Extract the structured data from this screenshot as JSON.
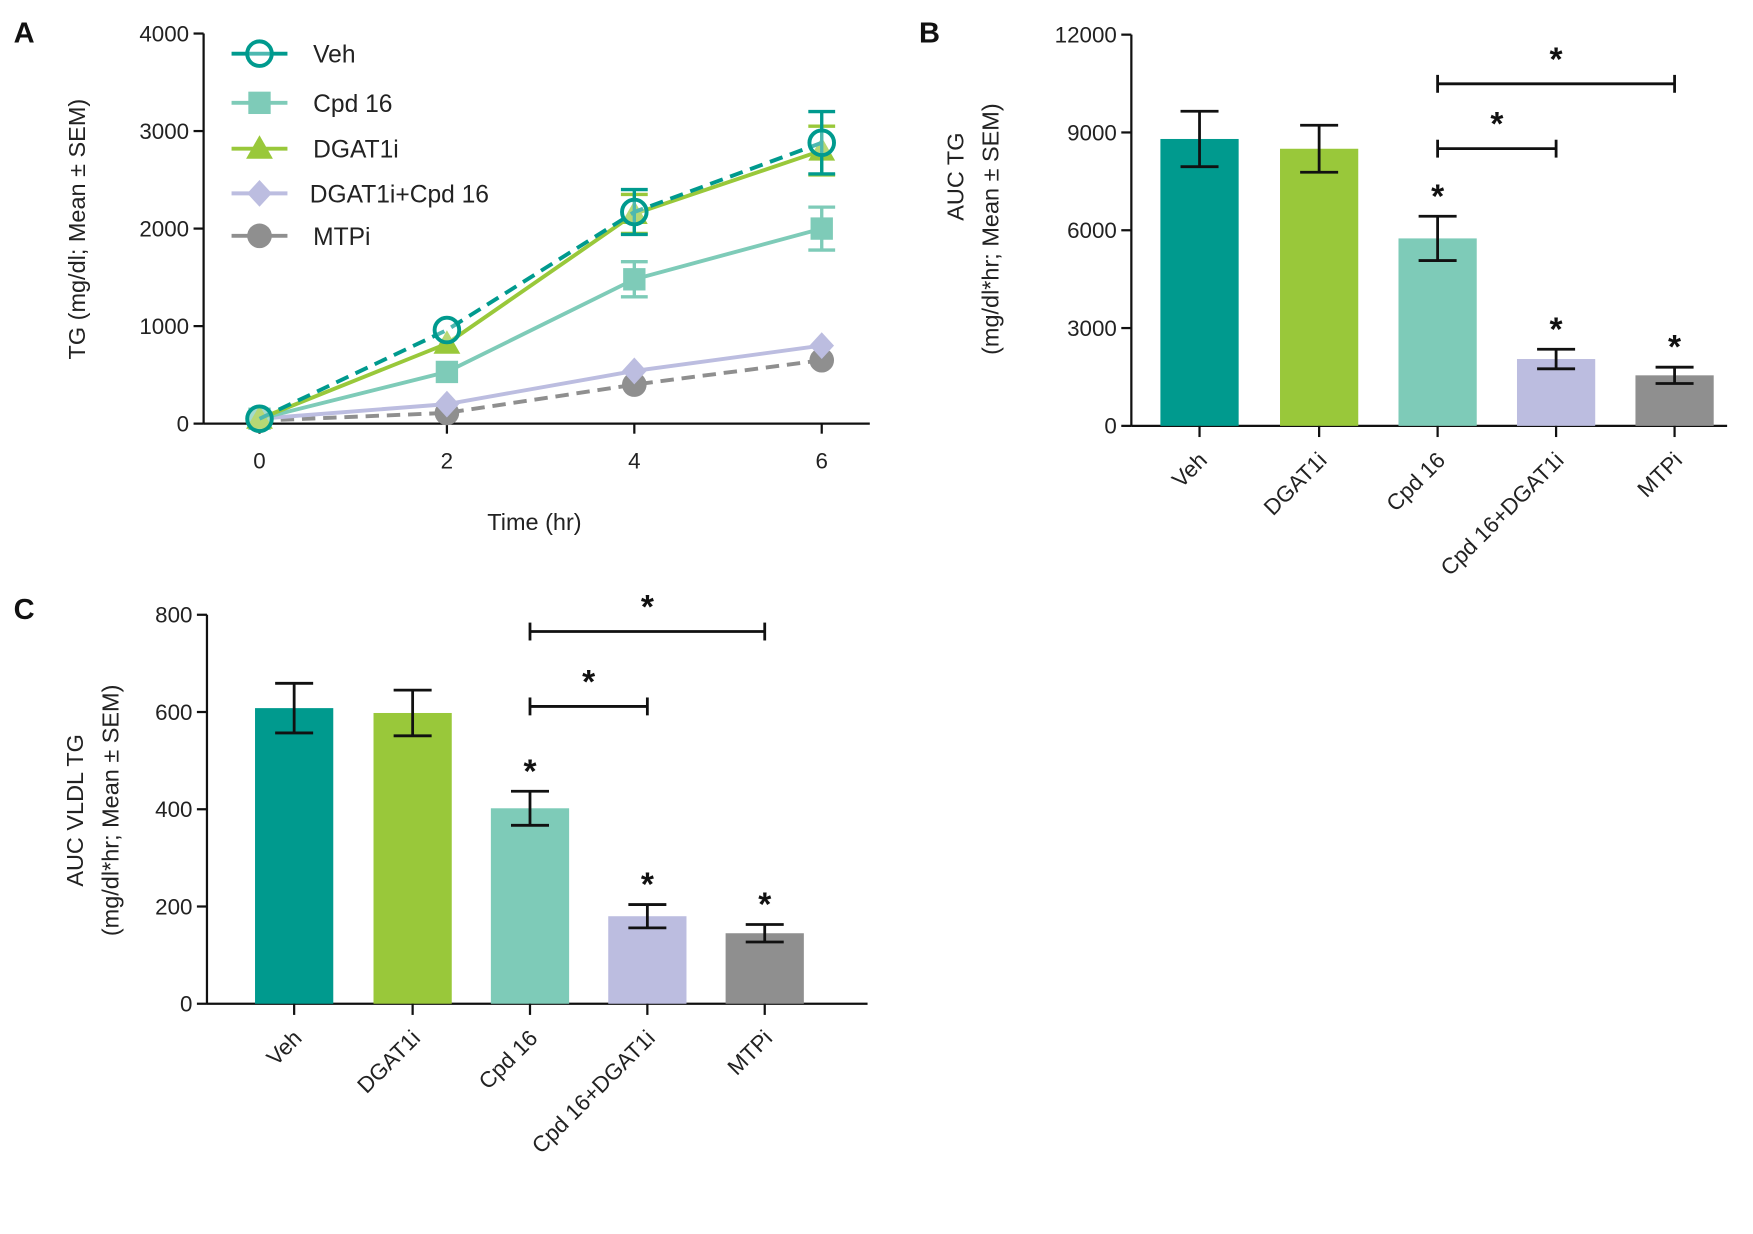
{
  "colors": {
    "Veh": "#009a8e",
    "DGAT1i": "#99c83a",
    "Cpd 16": "#7ecbb8",
    "DGAT1i+Cpd 16": "#bcbde0",
    "Cpd 16+DGAT1i": "#bcbde0",
    "MTPi": "#8f8f8f"
  },
  "chart_data": [
    {
      "panel": "A",
      "type": "line",
      "xlabel": "Time (hr)",
      "ylabel": "TG (mg/dl; Mean ± SEM)",
      "x": [
        0,
        2,
        4,
        6
      ],
      "xticks": [
        "0",
        "2",
        "4",
        "6"
      ],
      "yticks": [
        "0",
        "1000",
        "2000",
        "3000",
        "4000"
      ],
      "xlim": [
        0,
        6
      ],
      "ylim": [
        0,
        4000
      ],
      "legend": "top-left",
      "series": [
        {
          "name": "Veh",
          "values": [
            50,
            960,
            2170,
            2880
          ],
          "sem": [
            20,
            60,
            230,
            320
          ],
          "marker": "open-circle",
          "dash": true
        },
        {
          "name": "Cpd 16",
          "values": [
            50,
            530,
            1480,
            2000
          ],
          "sem": [
            20,
            50,
            180,
            220
          ],
          "marker": "square",
          "dash": false
        },
        {
          "name": "DGAT1i",
          "values": [
            50,
            820,
            2150,
            2800
          ],
          "sem": [
            20,
            50,
            200,
            250
          ],
          "marker": "triangle",
          "dash": false
        },
        {
          "name": "DGAT1i+Cpd 16",
          "values": [
            50,
            200,
            540,
            800
          ],
          "sem": [
            20,
            30,
            50,
            60
          ],
          "marker": "diamond",
          "dash": false
        },
        {
          "name": "MTPi",
          "values": [
            30,
            110,
            400,
            650
          ],
          "sem": [
            15,
            20,
            40,
            50
          ],
          "marker": "circle",
          "dash": true
        }
      ]
    },
    {
      "panel": "B",
      "type": "bar",
      "ylabel": [
        "AUC TG",
        "(mg/dl*hr; Mean ± SEM)"
      ],
      "categories": [
        "Veh",
        "DGAT1i",
        "Cpd 16",
        "Cpd 16+DGAT1i",
        "MTPi"
      ],
      "values": [
        8800,
        8500,
        5750,
        2050,
        1550
      ],
      "sem": [
        850,
        720,
        680,
        300,
        250
      ],
      "yticks": [
        "0",
        "3000",
        "6000",
        "9000",
        "12000"
      ],
      "ylim": [
        0,
        12000
      ],
      "significance": [
        "",
        "",
        "*",
        "*",
        "*"
      ],
      "brackets": [
        {
          "from": "Cpd 16",
          "to": "Cpd 16+DGAT1i",
          "label": "*"
        },
        {
          "from": "Cpd 16",
          "to": "MTPi",
          "label": "*"
        }
      ]
    },
    {
      "panel": "C",
      "type": "bar",
      "ylabel": [
        "AUC  VLDL TG",
        "(mg/dl*hr; Mean ± SEM)"
      ],
      "categories": [
        "Veh",
        "DGAT1i",
        "Cpd 16",
        "Cpd 16+DGAT1i",
        "MTPi"
      ],
      "values": [
        608,
        598,
        402,
        180,
        145
      ],
      "sem": [
        51,
        47,
        35,
        24,
        18
      ],
      "yticks": [
        "0",
        "200",
        "400",
        "600",
        "800"
      ],
      "ylim": [
        0,
        800
      ],
      "significance": [
        "",
        "",
        "*",
        "*",
        "*"
      ],
      "brackets": [
        {
          "from": "Cpd 16",
          "to": "Cpd 16+DGAT1i",
          "label": "*"
        },
        {
          "from": "Cpd 16",
          "to": "MTPi",
          "label": "*"
        }
      ]
    }
  ]
}
